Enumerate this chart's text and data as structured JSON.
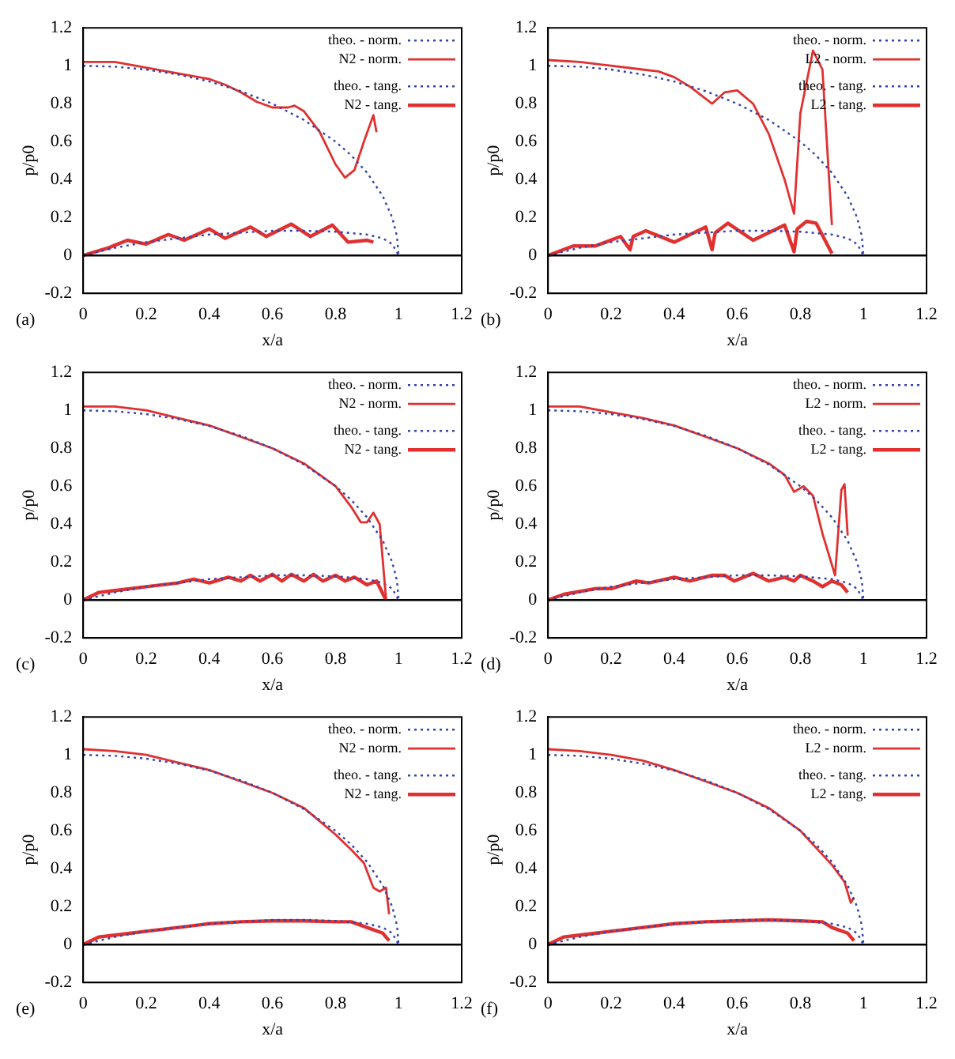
{
  "chart_data": [
    {
      "type": "line",
      "xlabel": "x/a",
      "ylabel": "p/p0",
      "xlim": [
        0,
        1.2
      ],
      "xticks": [
        0,
        0.2,
        0.4,
        0.6,
        0.8,
        1,
        1.2
      ],
      "ylim": [
        -0.2,
        1.2
      ],
      "yticks": [
        -0.2,
        0,
        0.2,
        0.4,
        0.6,
        0.8,
        1,
        1.2
      ],
      "grid": false,
      "legend": "top right",
      "annotations": [
        "(a)"
      ],
      "ref_lines": [
        {
          "axis": "y",
          "value": 0,
          "color": "#000000"
        }
      ],
      "series": [
        {
          "name": "theo. - norm.",
          "color": "#3344aa",
          "line_style": "dotted",
          "x": [
            0,
            0.1,
            0.2,
            0.3,
            0.4,
            0.5,
            0.6,
            0.7,
            0.8,
            0.85,
            0.9,
            0.95,
            0.98,
            0.995,
            1
          ],
          "values": [
            1,
            0.995,
            0.98,
            0.954,
            0.917,
            0.866,
            0.8,
            0.714,
            0.6,
            0.527,
            0.436,
            0.312,
            0.199,
            0.1,
            0
          ]
        },
        {
          "name": "N2 - norm.",
          "color": "#e03030",
          "line_style": "solid",
          "x": [
            0,
            0.1,
            0.2,
            0.3,
            0.4,
            0.45,
            0.5,
            0.55,
            0.6,
            0.65,
            0.67,
            0.7,
            0.75,
            0.8,
            0.83,
            0.86,
            0.89,
            0.92,
            0.93
          ],
          "values": [
            1.02,
            1.02,
            0.99,
            0.96,
            0.93,
            0.9,
            0.86,
            0.81,
            0.78,
            0.78,
            0.79,
            0.76,
            0.65,
            0.48,
            0.41,
            0.45,
            0.6,
            0.74,
            0.65
          ]
        },
        {
          "name": "theo. - tang.",
          "color": "#3344aa",
          "line_style": "dotted",
          "x": [
            0,
            0.1,
            0.2,
            0.3,
            0.4,
            0.5,
            0.6,
            0.7,
            0.8,
            0.9,
            0.95,
            0.98,
            1
          ],
          "values": [
            0,
            0.04,
            0.07,
            0.09,
            0.11,
            0.12,
            0.13,
            0.13,
            0.125,
            0.11,
            0.09,
            0.06,
            0
          ]
        },
        {
          "name": "N2 - tang.",
          "color": "#e03030",
          "line_style": "solid",
          "x": [
            0,
            0.08,
            0.14,
            0.2,
            0.27,
            0.32,
            0.4,
            0.45,
            0.53,
            0.58,
            0.66,
            0.72,
            0.79,
            0.84,
            0.9,
            0.92
          ],
          "values": [
            0,
            0.04,
            0.08,
            0.06,
            0.11,
            0.08,
            0.14,
            0.09,
            0.15,
            0.1,
            0.165,
            0.1,
            0.16,
            0.07,
            0.08,
            0.07
          ]
        }
      ]
    },
    {
      "type": "line",
      "xlabel": "x/a",
      "ylabel": "p/p0",
      "xlim": [
        0,
        1.2
      ],
      "xticks": [
        0,
        0.2,
        0.4,
        0.6,
        0.8,
        1,
        1.2
      ],
      "ylim": [
        -0.2,
        1.2
      ],
      "yticks": [
        -0.2,
        0,
        0.2,
        0.4,
        0.6,
        0.8,
        1,
        1.2
      ],
      "grid": false,
      "legend": "top right",
      "annotations": [
        "(b)"
      ],
      "ref_lines": [
        {
          "axis": "y",
          "value": 0,
          "color": "#000000"
        }
      ],
      "series": [
        {
          "name": "theo. - norm.",
          "color": "#3344aa",
          "line_style": "dotted",
          "x": [
            0,
            0.1,
            0.2,
            0.3,
            0.4,
            0.5,
            0.6,
            0.7,
            0.8,
            0.85,
            0.9,
            0.95,
            0.98,
            0.995,
            1
          ],
          "values": [
            1,
            0.995,
            0.98,
            0.954,
            0.917,
            0.866,
            0.8,
            0.714,
            0.6,
            0.527,
            0.436,
            0.312,
            0.199,
            0.1,
            0
          ]
        },
        {
          "name": "L2 - norm.",
          "color": "#e03030",
          "line_style": "solid",
          "x": [
            0,
            0.1,
            0.2,
            0.3,
            0.35,
            0.4,
            0.45,
            0.52,
            0.56,
            0.6,
            0.65,
            0.7,
            0.75,
            0.78,
            0.8,
            0.84,
            0.87,
            0.9
          ],
          "values": [
            1.03,
            1.02,
            1,
            0.98,
            0.97,
            0.94,
            0.89,
            0.8,
            0.86,
            0.87,
            0.8,
            0.64,
            0.4,
            0.22,
            0.75,
            1.08,
            0.98,
            0.16
          ]
        },
        {
          "name": "theo. - tang.",
          "color": "#3344aa",
          "line_style": "dotted",
          "x": [
            0,
            0.1,
            0.2,
            0.3,
            0.4,
            0.5,
            0.6,
            0.7,
            0.8,
            0.9,
            0.95,
            0.98,
            1
          ],
          "values": [
            0,
            0.04,
            0.07,
            0.09,
            0.11,
            0.12,
            0.13,
            0.13,
            0.125,
            0.11,
            0.09,
            0.06,
            0
          ]
        },
        {
          "name": "L2 - tang.",
          "color": "#e03030",
          "line_style": "solid",
          "x": [
            0,
            0.08,
            0.15,
            0.23,
            0.26,
            0.27,
            0.31,
            0.4,
            0.5,
            0.52,
            0.53,
            0.57,
            0.65,
            0.75,
            0.78,
            0.79,
            0.82,
            0.85,
            0.9
          ],
          "values": [
            0,
            0.05,
            0.05,
            0.1,
            0.03,
            0.1,
            0.13,
            0.07,
            0.15,
            0.03,
            0.12,
            0.17,
            0.08,
            0.16,
            0.02,
            0.14,
            0.18,
            0.17,
            0.01
          ]
        }
      ]
    },
    {
      "type": "line",
      "xlabel": "x/a",
      "ylabel": "p/p0",
      "xlim": [
        0,
        1.2
      ],
      "xticks": [
        0,
        0.2,
        0.4,
        0.6,
        0.8,
        1,
        1.2
      ],
      "ylim": [
        -0.2,
        1.2
      ],
      "yticks": [
        -0.2,
        0,
        0.2,
        0.4,
        0.6,
        0.8,
        1,
        1.2
      ],
      "grid": false,
      "legend": "top right",
      "annotations": [
        "(c)"
      ],
      "ref_lines": [
        {
          "axis": "y",
          "value": 0,
          "color": "#000000"
        }
      ],
      "series": [
        {
          "name": "theo. - norm.",
          "color": "#3344aa",
          "line_style": "dotted",
          "x": [
            0,
            0.1,
            0.2,
            0.3,
            0.4,
            0.5,
            0.6,
            0.7,
            0.8,
            0.85,
            0.9,
            0.95,
            0.98,
            0.995,
            1
          ],
          "values": [
            1,
            0.995,
            0.98,
            0.954,
            0.917,
            0.866,
            0.8,
            0.714,
            0.6,
            0.527,
            0.436,
            0.312,
            0.199,
            0.1,
            0
          ]
        },
        {
          "name": "N2 - norm.",
          "color": "#e03030",
          "line_style": "solid",
          "x": [
            0,
            0.1,
            0.2,
            0.3,
            0.4,
            0.5,
            0.6,
            0.7,
            0.75,
            0.8,
            0.85,
            0.88,
            0.9,
            0.92,
            0.94,
            0.96
          ],
          "values": [
            1.02,
            1.02,
            1,
            0.96,
            0.92,
            0.86,
            0.8,
            0.72,
            0.66,
            0.6,
            0.49,
            0.41,
            0.41,
            0.46,
            0.4,
            0.01
          ]
        },
        {
          "name": "theo. - tang.",
          "color": "#3344aa",
          "line_style": "dotted",
          "x": [
            0,
            0.1,
            0.2,
            0.3,
            0.4,
            0.5,
            0.6,
            0.7,
            0.8,
            0.9,
            0.95,
            0.98,
            1
          ],
          "values": [
            0,
            0.04,
            0.07,
            0.09,
            0.11,
            0.12,
            0.13,
            0.13,
            0.125,
            0.11,
            0.09,
            0.06,
            0
          ]
        },
        {
          "name": "N2 - tang.",
          "color": "#e03030",
          "line_style": "solid",
          "x": [
            0,
            0.05,
            0.1,
            0.2,
            0.3,
            0.35,
            0.4,
            0.46,
            0.5,
            0.53,
            0.56,
            0.6,
            0.63,
            0.66,
            0.7,
            0.73,
            0.76,
            0.8,
            0.83,
            0.86,
            0.9,
            0.93,
            0.96
          ],
          "values": [
            0,
            0.04,
            0.05,
            0.07,
            0.09,
            0.11,
            0.09,
            0.12,
            0.1,
            0.13,
            0.1,
            0.135,
            0.1,
            0.135,
            0.1,
            0.135,
            0.1,
            0.13,
            0.1,
            0.12,
            0.08,
            0.1,
            0
          ]
        }
      ]
    },
    {
      "type": "line",
      "xlabel": "x/a",
      "ylabel": "p/p0",
      "xlim": [
        0,
        1.2
      ],
      "xticks": [
        0,
        0.2,
        0.4,
        0.6,
        0.8,
        1,
        1.2
      ],
      "ylim": [
        -0.2,
        1.2
      ],
      "yticks": [
        -0.2,
        0,
        0.2,
        0.4,
        0.6,
        0.8,
        1,
        1.2
      ],
      "grid": false,
      "legend": "top right",
      "annotations": [
        "(d)"
      ],
      "ref_lines": [
        {
          "axis": "y",
          "value": 0,
          "color": "#000000"
        }
      ],
      "series": [
        {
          "name": "theo. - norm.",
          "color": "#3344aa",
          "line_style": "dotted",
          "x": [
            0,
            0.1,
            0.2,
            0.3,
            0.4,
            0.5,
            0.6,
            0.7,
            0.8,
            0.85,
            0.9,
            0.95,
            0.98,
            0.995,
            1
          ],
          "values": [
            1,
            0.995,
            0.98,
            0.954,
            0.917,
            0.866,
            0.8,
            0.714,
            0.6,
            0.527,
            0.436,
            0.312,
            0.199,
            0.1,
            0
          ]
        },
        {
          "name": "L2 - norm.",
          "color": "#e03030",
          "line_style": "solid",
          "x": [
            0,
            0.1,
            0.2,
            0.3,
            0.4,
            0.5,
            0.6,
            0.7,
            0.75,
            0.78,
            0.81,
            0.84,
            0.87,
            0.91,
            0.93,
            0.94,
            0.95
          ],
          "values": [
            1.02,
            1.02,
            0.99,
            0.96,
            0.92,
            0.86,
            0.8,
            0.72,
            0.66,
            0.57,
            0.6,
            0.55,
            0.35,
            0.13,
            0.58,
            0.61,
            0.34
          ]
        },
        {
          "name": "theo. - tang.",
          "color": "#3344aa",
          "line_style": "dotted",
          "x": [
            0,
            0.1,
            0.2,
            0.3,
            0.4,
            0.5,
            0.6,
            0.7,
            0.8,
            0.9,
            0.95,
            0.98,
            1
          ],
          "values": [
            0,
            0.04,
            0.07,
            0.09,
            0.11,
            0.12,
            0.13,
            0.13,
            0.125,
            0.11,
            0.09,
            0.06,
            0
          ]
        },
        {
          "name": "L2 - tang.",
          "color": "#e03030",
          "line_style": "solid",
          "x": [
            0,
            0.05,
            0.15,
            0.2,
            0.28,
            0.32,
            0.4,
            0.45,
            0.52,
            0.56,
            0.59,
            0.65,
            0.7,
            0.75,
            0.78,
            0.8,
            0.84,
            0.87,
            0.9,
            0.93,
            0.95
          ],
          "values": [
            0,
            0.03,
            0.06,
            0.06,
            0.1,
            0.09,
            0.12,
            0.1,
            0.13,
            0.13,
            0.1,
            0.14,
            0.1,
            0.12,
            0.1,
            0.13,
            0.1,
            0.07,
            0.1,
            0.08,
            0.04
          ]
        }
      ]
    },
    {
      "type": "line",
      "xlabel": "x/a",
      "ylabel": "p/p0",
      "xlim": [
        0,
        1.2
      ],
      "xticks": [
        0,
        0.2,
        0.4,
        0.6,
        0.8,
        1,
        1.2
      ],
      "ylim": [
        -0.2,
        1.2
      ],
      "yticks": [
        -0.2,
        0,
        0.2,
        0.4,
        0.6,
        0.8,
        1,
        1.2
      ],
      "grid": false,
      "legend": "top right",
      "annotations": [
        "(e)"
      ],
      "ref_lines": [
        {
          "axis": "y",
          "value": 0,
          "color": "#000000"
        }
      ],
      "series": [
        {
          "name": "theo. - norm.",
          "color": "#3344aa",
          "line_style": "dotted",
          "x": [
            0,
            0.1,
            0.2,
            0.3,
            0.4,
            0.5,
            0.6,
            0.7,
            0.8,
            0.85,
            0.9,
            0.95,
            0.98,
            0.995,
            1
          ],
          "values": [
            1,
            0.995,
            0.98,
            0.954,
            0.917,
            0.866,
            0.8,
            0.714,
            0.6,
            0.527,
            0.436,
            0.312,
            0.199,
            0.1,
            0
          ]
        },
        {
          "name": "N2 - norm.",
          "color": "#e03030",
          "line_style": "solid",
          "x": [
            0,
            0.1,
            0.2,
            0.3,
            0.4,
            0.5,
            0.6,
            0.7,
            0.8,
            0.85,
            0.89,
            0.92,
            0.94,
            0.96,
            0.97
          ],
          "values": [
            1.03,
            1.02,
            1,
            0.96,
            0.92,
            0.86,
            0.8,
            0.72,
            0.58,
            0.5,
            0.43,
            0.3,
            0.28,
            0.3,
            0.16
          ]
        },
        {
          "name": "theo. - tang.",
          "color": "#3344aa",
          "line_style": "dotted",
          "x": [
            0,
            0.1,
            0.2,
            0.3,
            0.4,
            0.5,
            0.6,
            0.7,
            0.8,
            0.9,
            0.95,
            0.98,
            1
          ],
          "values": [
            0,
            0.04,
            0.07,
            0.09,
            0.11,
            0.12,
            0.13,
            0.13,
            0.125,
            0.11,
            0.09,
            0.06,
            0
          ]
        },
        {
          "name": "N2 - tang.",
          "color": "#e03030",
          "line_style": "solid",
          "x": [
            0,
            0.05,
            0.1,
            0.2,
            0.3,
            0.4,
            0.5,
            0.6,
            0.7,
            0.8,
            0.85,
            0.9,
            0.95,
            0.97
          ],
          "values": [
            0,
            0.04,
            0.05,
            0.07,
            0.09,
            0.11,
            0.12,
            0.125,
            0.125,
            0.12,
            0.12,
            0.09,
            0.06,
            0.02
          ]
        }
      ]
    },
    {
      "type": "line",
      "xlabel": "x/a",
      "ylabel": "p/p0",
      "xlim": [
        0,
        1.2
      ],
      "xticks": [
        0,
        0.2,
        0.4,
        0.6,
        0.8,
        1,
        1.2
      ],
      "ylim": [
        -0.2,
        1.2
      ],
      "yticks": [
        -0.2,
        0,
        0.2,
        0.4,
        0.6,
        0.8,
        1,
        1.2
      ],
      "grid": false,
      "legend": "top right",
      "annotations": [
        "(f)"
      ],
      "ref_lines": [
        {
          "axis": "y",
          "value": 0,
          "color": "#000000"
        }
      ],
      "series": [
        {
          "name": "theo. - norm.",
          "color": "#3344aa",
          "line_style": "dotted",
          "x": [
            0,
            0.1,
            0.2,
            0.3,
            0.4,
            0.5,
            0.6,
            0.7,
            0.8,
            0.85,
            0.9,
            0.95,
            0.98,
            0.995,
            1
          ],
          "values": [
            1,
            0.995,
            0.98,
            0.954,
            0.917,
            0.866,
            0.8,
            0.714,
            0.6,
            0.527,
            0.436,
            0.312,
            0.199,
            0.1,
            0
          ]
        },
        {
          "name": "L2 - norm.",
          "color": "#e03030",
          "line_style": "solid",
          "x": [
            0,
            0.1,
            0.2,
            0.3,
            0.4,
            0.5,
            0.6,
            0.7,
            0.8,
            0.9,
            0.94,
            0.96,
            0.97
          ],
          "values": [
            1.03,
            1.02,
            1,
            0.97,
            0.92,
            0.86,
            0.8,
            0.72,
            0.6,
            0.42,
            0.33,
            0.22,
            0.25
          ]
        },
        {
          "name": "theo. - tang.",
          "color": "#3344aa",
          "line_style": "dotted",
          "x": [
            0,
            0.1,
            0.2,
            0.3,
            0.4,
            0.5,
            0.6,
            0.7,
            0.8,
            0.9,
            0.95,
            0.98,
            1
          ],
          "values": [
            0,
            0.04,
            0.07,
            0.09,
            0.11,
            0.12,
            0.13,
            0.13,
            0.125,
            0.11,
            0.09,
            0.06,
            0
          ]
        },
        {
          "name": "L2 - tang.",
          "color": "#e03030",
          "line_style": "solid",
          "x": [
            0,
            0.05,
            0.1,
            0.2,
            0.3,
            0.4,
            0.5,
            0.6,
            0.7,
            0.8,
            0.87,
            0.9,
            0.95,
            0.97
          ],
          "values": [
            0,
            0.04,
            0.05,
            0.07,
            0.09,
            0.11,
            0.12,
            0.125,
            0.13,
            0.125,
            0.12,
            0.09,
            0.06,
            0.02
          ]
        }
      ]
    }
  ]
}
